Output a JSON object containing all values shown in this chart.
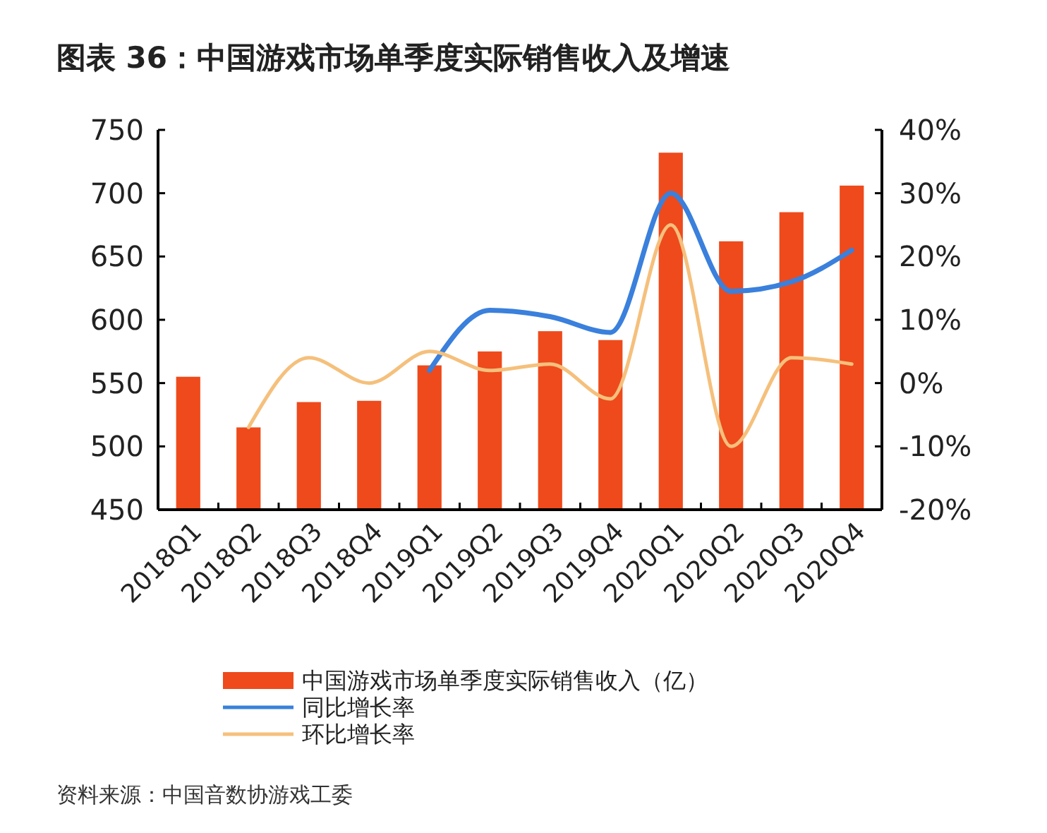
{
  "chart_data": {
    "type": "bar",
    "title": "图表 36：中国游戏市场单季度实际销售收入及增速",
    "categories": [
      "2018Q1",
      "2018Q2",
      "2018Q3",
      "2018Q4",
      "2019Q1",
      "2019Q2",
      "2019Q3",
      "2019Q4",
      "2020Q1",
      "2020Q2",
      "2020Q3",
      "2020Q4"
    ],
    "series": [
      {
        "name": "中国游戏市场单季度实际销售收入（亿）",
        "color": "#ee4a1c",
        "values": [
          555,
          515,
          535,
          536,
          564,
          575,
          591,
          584,
          732,
          662,
          685,
          706
        ]
      },
      {
        "name": "同比增长率",
        "type": "line",
        "axis": "y2",
        "color": "#3a80dc",
        "values": [
          null,
          null,
          null,
          null,
          2,
          11.5,
          10.5,
          8,
          30,
          14.5,
          16,
          21
        ]
      },
      {
        "name": "环比增长率",
        "type": "line",
        "axis": "y2",
        "color": "#f5c07c",
        "values": [
          null,
          -7,
          4,
          0,
          5,
          2,
          3,
          -2.5,
          25,
          -10,
          4,
          3
        ]
      }
    ],
    "ylim": [
      450,
      750
    ],
    "yticks": [
      450,
      500,
      550,
      600,
      650,
      700,
      750
    ],
    "y2lim": [
      -20,
      40
    ],
    "y2ticks": [
      {
        "value": -20,
        "label": "-20%"
      },
      {
        "value": -10,
        "label": "-10%"
      },
      {
        "value": 0,
        "label": "0%"
      },
      {
        "value": 10,
        "label": "10%"
      },
      {
        "value": 20,
        "label": "20%"
      },
      {
        "value": 30,
        "label": "30%"
      },
      {
        "value": 40,
        "label": "40%"
      }
    ],
    "legend": "bottom",
    "grid": false,
    "annotations": [
      "资料来源：中国音数协游戏工委"
    ]
  }
}
